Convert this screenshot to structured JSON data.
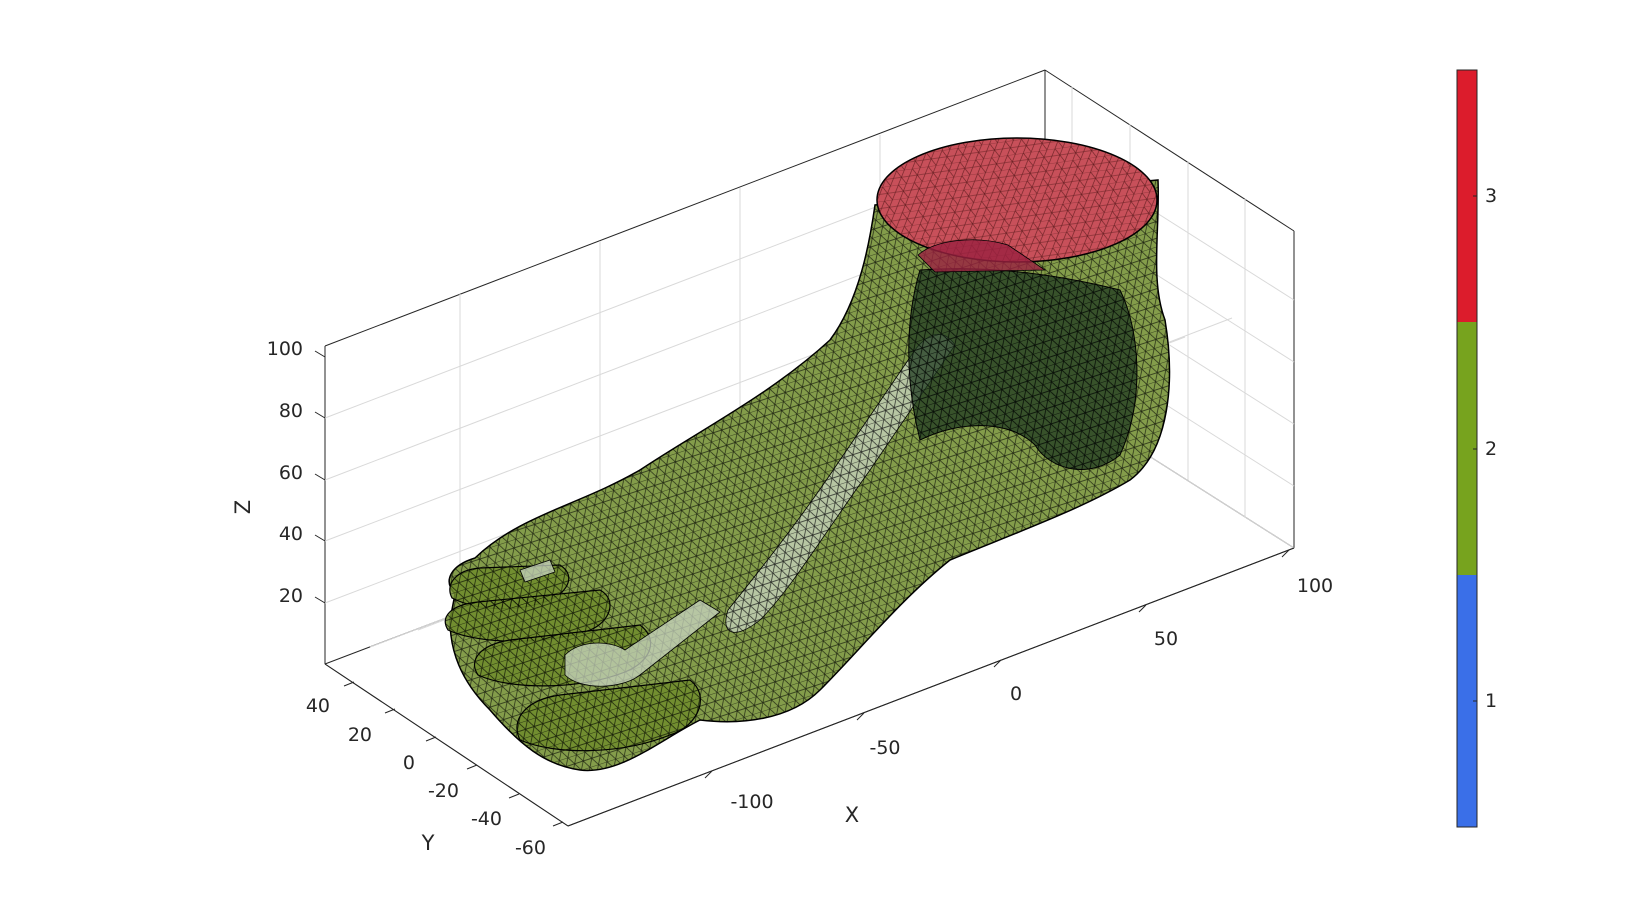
{
  "chart_data": {
    "type": "3d-surface-mesh",
    "xlabel": "X",
    "ylabel": "Y",
    "zlabel": "Z",
    "xticks": [
      "-100",
      "-50",
      "0",
      "50",
      "100"
    ],
    "yticks": [
      "-60",
      "-40",
      "-20",
      "0",
      "20",
      "40"
    ],
    "zticks": [
      "20",
      "40",
      "60",
      "80",
      "100"
    ],
    "xlim": [
      -135,
      110
    ],
    "ylim": [
      -60,
      50
    ],
    "zlim": [
      0,
      100
    ],
    "grid": true,
    "box": true,
    "colorbar": {
      "ticks": [
        "1",
        "2",
        "3"
      ],
      "segments": [
        {
          "label": "1",
          "color": "#3a6fe8"
        },
        {
          "label": "2",
          "color": "#77a31e"
        },
        {
          "label": "3",
          "color": "#dc1c2c"
        }
      ]
    },
    "mesh_colors": {
      "skin": "#6e8c2c",
      "top_cap": "#c8505a",
      "bone": "#c8d4c0",
      "edges": "#000000"
    }
  }
}
